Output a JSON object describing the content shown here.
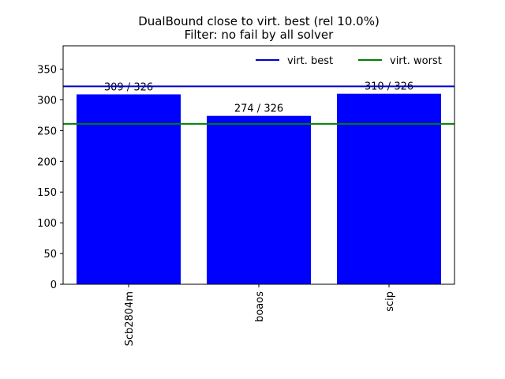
{
  "chart_data": {
    "type": "bar",
    "title": "DualBound close to virt. best (rel 10.0%)",
    "subtitle": "Filter: no fail by all solver",
    "xlabel": "",
    "ylabel": "",
    "categories": [
      "Scb2804m",
      "boaos",
      "scip"
    ],
    "values": [
      309,
      274,
      310
    ],
    "bar_labels": [
      "309 / 326",
      "274 / 326",
      "310 / 326"
    ],
    "bar_color": "#0000ff",
    "ylim": [
      0,
      388
    ],
    "yticks": [
      0,
      50,
      100,
      150,
      200,
      250,
      300,
      350
    ],
    "reference_lines": [
      {
        "name": "virt. best",
        "value": 322,
        "color": "#0000cc"
      },
      {
        "name": "virt. worst",
        "value": 261,
        "color": "#008000"
      }
    ],
    "legend_position": "top-right",
    "grid": false
  }
}
